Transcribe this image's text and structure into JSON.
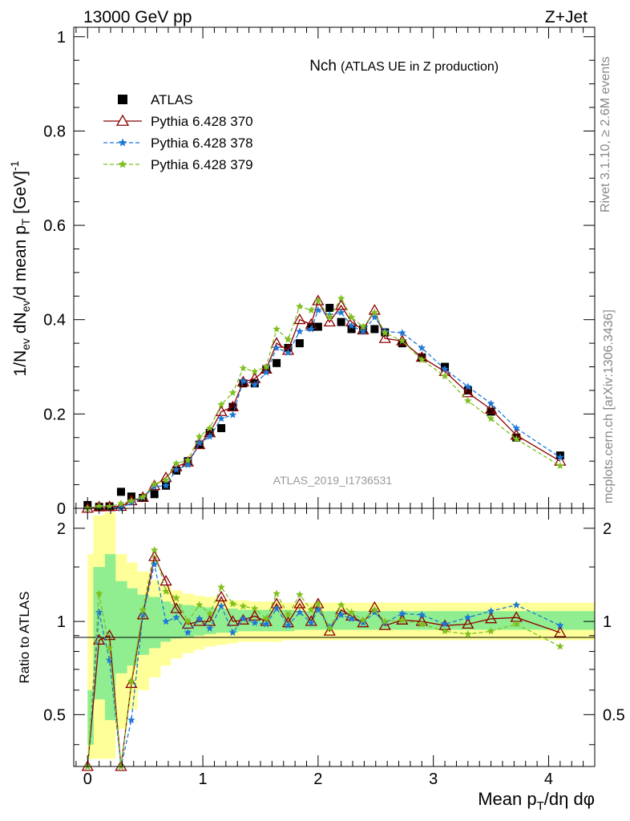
{
  "header": {
    "energy_label": "13000 GeV pp",
    "process_label": "Z+Jet",
    "side_rivet": "Rivet 3.1.10, ≥ 2.6M events",
    "side_mcplots": "mcplots.cern.ch [arXiv:1306.3436]",
    "analysis_id": "ATLAS_2019_I1736531"
  },
  "colors": {
    "data": "#000000",
    "p370": "#8b0000",
    "p378": "#1e78d6",
    "p379": "#7fbf1f",
    "band_inner": "#90ee90",
    "band_outer": "#ffff99"
  },
  "chart_data": [
    {
      "type": "line",
      "title_main": "Nch",
      "title_sub": "(ATLAS UE in Z production)",
      "ylabel": "1/N_ev dN_ev/d mean p_T [GeV]^-1",
      "xlim": [
        -0.12,
        4.4
      ],
      "ylim": [
        0,
        1.02
      ],
      "yticks": [
        0,
        0.2,
        0.4,
        0.6,
        0.8,
        1
      ],
      "ytick_labels": [
        "0",
        "0.2",
        "0.4",
        "0.6",
        "0.8",
        "1"
      ],
      "legend_position": "top-left",
      "x": [
        0.0,
        0.1,
        0.19,
        0.29,
        0.38,
        0.48,
        0.58,
        0.68,
        0.77,
        0.87,
        0.97,
        1.06,
        1.16,
        1.26,
        1.35,
        1.45,
        1.55,
        1.64,
        1.74,
        1.84,
        1.94,
        2.0,
        2.1,
        2.2,
        2.29,
        2.39,
        2.49,
        2.58,
        2.73,
        2.9,
        3.1,
        3.3,
        3.5,
        3.72,
        4.1
      ],
      "series": [
        {
          "name": "ATLAS",
          "marker": "square",
          "values": [
            0.007,
            0.003,
            0.004,
            0.035,
            0.025,
            0.022,
            0.03,
            0.048,
            0.08,
            0.1,
            0.135,
            0.16,
            0.17,
            0.215,
            0.265,
            0.265,
            0.295,
            0.308,
            0.34,
            0.35,
            0.385,
            0.385,
            0.425,
            0.395,
            0.38,
            0.38,
            0.38,
            0.373,
            0.35,
            0.32,
            0.3,
            0.25,
            0.205,
            0.15,
            0.112
          ]
        },
        {
          "name": "Pythia 6.428 370",
          "marker": "triangle-open",
          "values": [
            0.0,
            0.003,
            0.0035,
            0.004,
            0.016,
            0.023,
            0.048,
            0.065,
            0.088,
            0.098,
            0.135,
            0.16,
            0.205,
            0.215,
            0.268,
            0.275,
            0.295,
            0.35,
            0.335,
            0.4,
            0.39,
            0.44,
            0.395,
            0.43,
            0.395,
            0.378,
            0.42,
            0.36,
            0.355,
            0.32,
            0.29,
            0.245,
            0.21,
            0.155,
            0.1
          ]
        },
        {
          "name": "Pythia 6.428 378",
          "marker": "star",
          "values": [
            0.0,
            0.0035,
            0.003,
            0.0,
            0.012,
            0.023,
            0.046,
            0.048,
            0.082,
            0.092,
            0.138,
            0.152,
            0.19,
            0.198,
            0.27,
            0.262,
            0.288,
            0.34,
            0.33,
            0.375,
            0.38,
            0.42,
            0.41,
            0.415,
            0.387,
            0.375,
            0.405,
            0.375,
            0.372,
            0.34,
            0.295,
            0.258,
            0.222,
            0.17,
            0.108
          ]
        },
        {
          "name": "Pythia 6.428 379",
          "marker": "star",
          "values": [
            0.0,
            0.004,
            0.0035,
            0.01,
            0.016,
            0.024,
            0.051,
            0.06,
            0.095,
            0.102,
            0.152,
            0.17,
            0.22,
            0.245,
            0.297,
            0.29,
            0.3,
            0.38,
            0.358,
            0.428,
            0.42,
            0.44,
            0.405,
            0.445,
            0.405,
            0.385,
            0.415,
            0.372,
            0.355,
            0.315,
            0.28,
            0.228,
            0.19,
            0.147,
            0.09
          ]
        }
      ]
    },
    {
      "type": "line",
      "ylabel": "Ratio to ATLAS",
      "xlabel": "Mean p_T/dη dφ",
      "xlim": [
        -0.12,
        4.4
      ],
      "ylim": [
        0.34,
        2.32
      ],
      "yticks": [
        0.5,
        1,
        2
      ],
      "ytick_labels": [
        "0.5",
        "1",
        "2"
      ],
      "xticks": [
        0,
        1,
        2,
        3,
        4
      ],
      "xtick_labels": [
        "0",
        "1",
        "2",
        "3",
        "4"
      ],
      "log_y": true,
      "x": [
        0.0,
        0.1,
        0.19,
        0.29,
        0.38,
        0.48,
        0.58,
        0.68,
        0.77,
        0.87,
        0.97,
        1.06,
        1.16,
        1.26,
        1.35,
        1.45,
        1.55,
        1.64,
        1.74,
        1.84,
        1.94,
        2.0,
        2.1,
        2.2,
        2.29,
        2.39,
        2.49,
        2.58,
        2.73,
        2.9,
        3.1,
        3.3,
        3.5,
        3.72,
        4.1
      ],
      "band_edges": [
        0.0,
        0.05,
        0.15,
        0.24,
        0.34,
        0.43,
        0.53,
        0.63,
        0.72,
        0.82,
        0.92,
        1.01,
        1.11,
        1.21,
        1.3,
        1.4,
        1.5,
        1.59,
        1.69,
        1.79,
        1.89,
        1.97,
        2.05,
        2.15,
        2.25,
        2.34,
        2.44,
        2.54,
        2.65,
        2.8,
        3.0,
        3.2,
        3.4,
        3.6,
        3.85,
        4.4
      ],
      "band_inner": [
        0.6,
        1.5,
        1.65,
        1.35,
        1.28,
        1.22,
        1.2,
        1.16,
        1.14,
        1.13,
        1.12,
        1.11,
        1.1,
        1.1,
        1.09,
        1.09,
        1.09,
        1.09,
        1.09,
        1.08,
        1.08,
        1.08,
        1.08,
        1.08,
        1.08,
        1.08,
        1.08,
        1.08,
        1.08,
        1.08,
        1.08,
        1.08,
        1.08,
        1.08,
        1.08
      ],
      "band_inner_low": [
        0.4,
        0.56,
        0.48,
        0.68,
        0.72,
        0.78,
        0.82,
        0.86,
        0.88,
        0.89,
        0.9,
        0.91,
        0.92,
        0.92,
        0.93,
        0.93,
        0.93,
        0.93,
        0.93,
        0.94,
        0.94,
        0.94,
        0.94,
        0.94,
        0.94,
        0.94,
        0.94,
        0.94,
        0.94,
        0.94,
        0.94,
        0.94,
        0.94,
        0.94,
        0.94
      ],
      "band_outer": [
        1.65,
        2.2,
        2.25,
        1.65,
        1.55,
        1.45,
        1.36,
        1.3,
        1.26,
        1.23,
        1.21,
        1.2,
        1.18,
        1.17,
        1.17,
        1.16,
        1.16,
        1.16,
        1.15,
        1.15,
        1.15,
        1.15,
        1.15,
        1.15,
        1.15,
        1.15,
        1.15,
        1.15,
        1.15,
        1.15,
        1.15,
        1.15,
        1.15,
        1.15,
        1.15
      ],
      "band_outer_low": [
        0.36,
        0.36,
        0.36,
        0.45,
        0.52,
        0.6,
        0.66,
        0.72,
        0.76,
        0.79,
        0.81,
        0.83,
        0.84,
        0.85,
        0.86,
        0.86,
        0.86,
        0.86,
        0.87,
        0.87,
        0.87,
        0.87,
        0.87,
        0.87,
        0.87,
        0.87,
        0.87,
        0.87,
        0.87,
        0.87,
        0.87,
        0.87,
        0.87,
        0.87,
        0.87
      ],
      "series": [
        {
          "name": "Pythia 6.428 370",
          "values": [
            0.3,
            0.87,
            0.9,
            0.3,
            0.63,
            1.05,
            1.62,
            1.35,
            1.1,
            0.98,
            1.0,
            1.0,
            1.2,
            1.0,
            1.01,
            1.04,
            1.0,
            1.14,
            0.99,
            1.14,
            1.0,
            1.14,
            0.93,
            1.09,
            1.04,
            0.99,
            1.11,
            0.97,
            1.01,
            1.0,
            0.97,
            0.98,
            1.02,
            1.03,
            0.92
          ]
        },
        {
          "name": "Pythia 6.428 378",
          "values": [
            0.3,
            1.07,
            0.75,
            0.3,
            0.48,
            1.05,
            1.53,
            1.0,
            1.03,
            0.92,
            1.02,
            0.95,
            1.12,
            0.92,
            1.02,
            0.99,
            0.98,
            1.1,
            0.97,
            1.07,
            0.99,
            1.09,
            0.96,
            1.05,
            1.02,
            0.99,
            1.07,
            0.99,
            1.06,
            1.05,
            0.98,
            1.03,
            1.08,
            1.13,
            0.97
          ]
        },
        {
          "name": "Pythia 6.428 379",
          "values": [
            0.3,
            1.23,
            0.82,
            0.3,
            0.64,
            1.09,
            1.7,
            1.25,
            1.19,
            1.0,
            1.13,
            1.06,
            1.29,
            1.14,
            1.12,
            1.1,
            1.02,
            1.23,
            1.05,
            1.22,
            1.09,
            1.14,
            0.95,
            1.13,
            1.07,
            1.01,
            1.09,
            1.0,
            1.01,
            0.98,
            0.93,
            0.91,
            0.93,
            0.98,
            0.83
          ]
        }
      ]
    }
  ]
}
